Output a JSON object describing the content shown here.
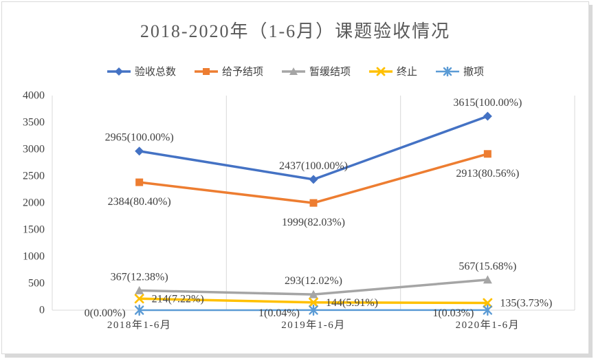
{
  "title": "2018-2020年（1-6月）课题验收情况",
  "colors": {
    "axis": "#D9D9D9",
    "label_text": "#404040",
    "title_text": "#595959"
  },
  "chart_data": {
    "type": "line",
    "title": "2018-2020年（1-6月）课题验收情况",
    "categories": [
      "2018年1-6月",
      "2019年1-6月",
      "2020年1-6月"
    ],
    "xlabel": "",
    "ylabel": "",
    "ylim": [
      0,
      4000
    ],
    "y_ticks": [
      0,
      500,
      1000,
      1500,
      2000,
      2500,
      3000,
      3500,
      4000
    ],
    "grid": "vertical-major",
    "legend_position": "top",
    "series": [
      {
        "name": "验收总数",
        "marker": "diamond",
        "color": "#4472C4",
        "line_width": 3.5,
        "values": [
          2965,
          2437,
          3615
        ],
        "data_labels": [
          "2965(100.00%)",
          "2437(100.00%)",
          "3615(100.00%)"
        ],
        "label_positions": [
          "above",
          "above",
          "above"
        ]
      },
      {
        "name": "给予结项",
        "marker": "square",
        "color": "#ED7D31",
        "line_width": 3.5,
        "values": [
          2384,
          1999,
          2913
        ],
        "data_labels": [
          "2384(80.40%)",
          "1999(82.03%)",
          "2913(80.56%)"
        ],
        "label_positions": [
          "below",
          "below",
          "below"
        ]
      },
      {
        "name": "暂缓结项",
        "marker": "triangle",
        "color": "#A5A5A5",
        "line_width": 3.5,
        "values": [
          367,
          293,
          567
        ],
        "data_labels": [
          "367(12.38%)",
          "293(12.02%)",
          "567(15.68%)"
        ],
        "label_positions": [
          "above",
          "above",
          "above"
        ]
      },
      {
        "name": "终止",
        "marker": "x",
        "color": "#FFC000",
        "line_width": 3.5,
        "values": [
          214,
          144,
          135
        ],
        "data_labels": [
          "214(7.22%)",
          "144(5.91%)",
          "135(3.73%)"
        ],
        "label_positions": [
          "right",
          "right",
          "right"
        ]
      },
      {
        "name": "撤项",
        "marker": "asterisk",
        "color": "#5B9BD5",
        "line_width": 2.5,
        "values": [
          0,
          1,
          1
        ],
        "data_labels": [
          "0(0.00%)",
          "1(0.04%)",
          "1(0.03%)"
        ],
        "label_positions": [
          "left",
          "left",
          "left"
        ]
      }
    ]
  }
}
